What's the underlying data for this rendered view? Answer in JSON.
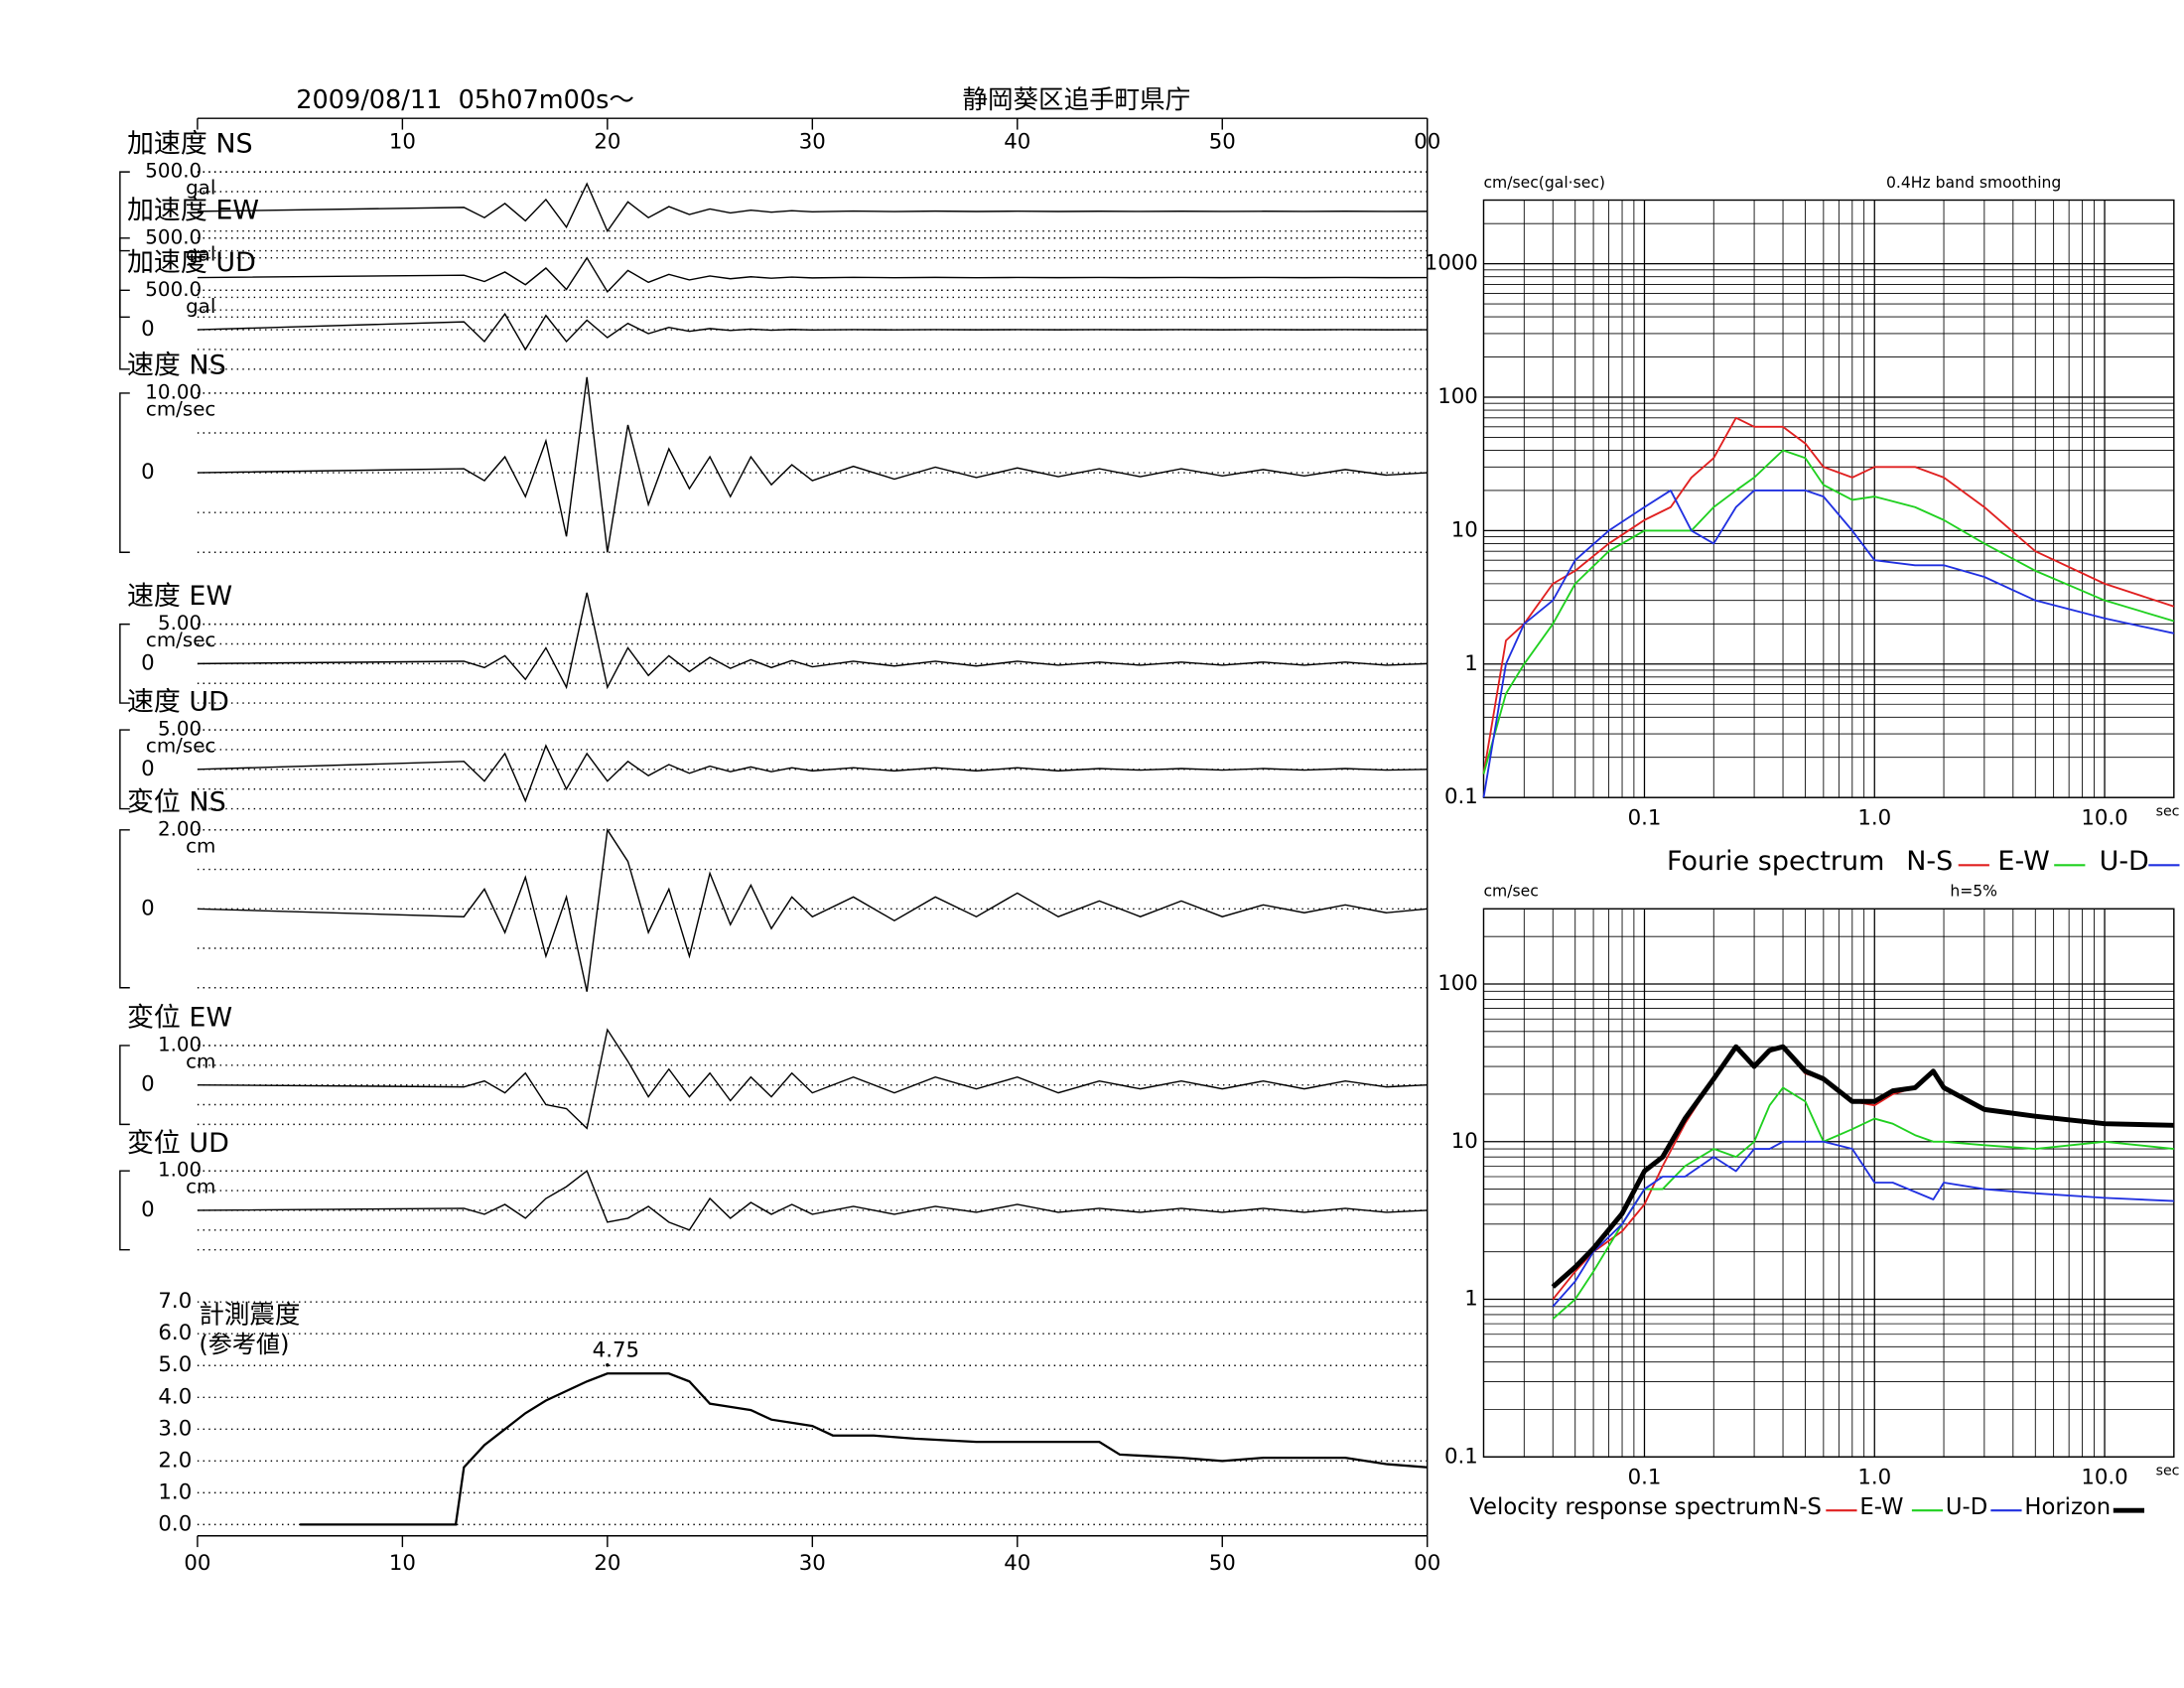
{
  "header": {
    "datetime": "2009/08/11  05h07m00s〜",
    "station": "静岡葵区追手町県庁"
  },
  "time_axis": {
    "xlim": [
      0,
      60
    ],
    "xticks": [
      {
        "value": 0,
        "label": "00"
      },
      10,
      20,
      30,
      40,
      50,
      {
        "value": 60,
        "label": "00"
      }
    ]
  },
  "chart_data": [
    {
      "type": "line",
      "title": "加速度 NS",
      "y_unit": "gal",
      "ylim": [
        -500,
        500
      ],
      "yticks": [
        {
          "value": 500,
          "label": "500.0"
        }
      ],
      "x": [
        0,
        13,
        14,
        15,
        16,
        17,
        18,
        19,
        20,
        21,
        22,
        23,
        24,
        25,
        26,
        27,
        28,
        29,
        30,
        32,
        34,
        36,
        38,
        40,
        42,
        44,
        46,
        48,
        50,
        52,
        54,
        56,
        58,
        60
      ],
      "values": [
        0,
        50,
        -80,
        100,
        -120,
        150,
        -200,
        350,
        -250,
        120,
        -80,
        60,
        -40,
        30,
        -20,
        15,
        -10,
        8,
        -6,
        4,
        -3,
        3,
        -2,
        2,
        -2,
        1,
        -1,
        1,
        -1,
        1,
        -1,
        1,
        -1,
        0
      ]
    },
    {
      "type": "line",
      "title": "加速度 EW",
      "y_unit": "gal",
      "ylim": [
        -500,
        500
      ],
      "yticks": [
        {
          "value": 500,
          "label": "500.0"
        }
      ],
      "x": [
        0,
        13,
        14,
        15,
        16,
        17,
        18,
        19,
        20,
        21,
        22,
        23,
        24,
        25,
        26,
        27,
        28,
        29,
        30,
        32,
        34,
        36,
        38,
        40,
        42,
        44,
        46,
        48,
        50,
        52,
        54,
        56,
        58,
        60
      ],
      "values": [
        0,
        30,
        -50,
        70,
        -90,
        120,
        -150,
        250,
        -180,
        90,
        -60,
        40,
        -30,
        20,
        -15,
        10,
        -8,
        6,
        -4,
        3,
        -2,
        2,
        -2,
        1,
        -1,
        1,
        -1,
        1,
        -1,
        1,
        -1,
        1,
        -1,
        0
      ]
    },
    {
      "type": "line",
      "title": "加速度 UD",
      "y_unit": "gal",
      "ylim": [
        -500,
        500
      ],
      "yticks": [
        {
          "value": 500,
          "label": "500.0"
        },
        0
      ],
      "x": [
        0,
        13,
        14,
        15,
        16,
        17,
        18,
        19,
        20,
        21,
        22,
        23,
        24,
        25,
        26,
        27,
        28,
        29,
        30,
        32,
        34,
        36,
        38,
        40,
        42,
        44,
        46,
        48,
        50,
        52,
        54,
        56,
        58,
        60
      ],
      "values": [
        0,
        100,
        -150,
        200,
        -250,
        180,
        -150,
        120,
        -100,
        80,
        -50,
        30,
        -20,
        15,
        -10,
        8,
        -6,
        4,
        -3,
        2,
        -2,
        1,
        -1,
        1,
        -1,
        1,
        -1,
        1,
        -1,
        1,
        -1,
        1,
        -1,
        0
      ]
    },
    {
      "type": "line",
      "title": "速度 NS",
      "y_unit": "cm/sec",
      "ylim": [
        -10,
        10
      ],
      "yticks": [
        {
          "value": 10,
          "label": "10.00"
        },
        0
      ],
      "x": [
        0,
        13,
        14,
        15,
        16,
        17,
        18,
        19,
        20,
        21,
        22,
        23,
        24,
        25,
        26,
        27,
        28,
        29,
        30,
        32,
        34,
        36,
        38,
        40,
        42,
        44,
        46,
        48,
        50,
        52,
        54,
        56,
        58,
        60
      ],
      "values": [
        0,
        0.5,
        -1,
        2,
        -3,
        4,
        -8,
        12,
        -10,
        6,
        -4,
        3,
        -2,
        2,
        -3,
        2,
        -1.5,
        1,
        -1,
        0.8,
        -0.8,
        0.7,
        -0.6,
        0.6,
        -0.5,
        0.5,
        -0.5,
        0.5,
        -0.4,
        0.4,
        -0.4,
        0.4,
        -0.3,
        0
      ]
    },
    {
      "type": "line",
      "title": "速度 EW",
      "y_unit": "cm/sec",
      "ylim": [
        -5,
        5
      ],
      "yticks": [
        {
          "value": 5,
          "label": "5.00"
        },
        0
      ],
      "x": [
        0,
        13,
        14,
        15,
        16,
        17,
        18,
        19,
        20,
        21,
        22,
        23,
        24,
        25,
        26,
        27,
        28,
        29,
        30,
        32,
        34,
        36,
        38,
        40,
        42,
        44,
        46,
        48,
        50,
        52,
        54,
        56,
        58,
        60
      ],
      "values": [
        0,
        0.3,
        -0.5,
        1,
        -2,
        2,
        -3,
        9,
        -3,
        2,
        -1.5,
        1,
        -1,
        0.8,
        -0.6,
        0.5,
        -0.5,
        0.4,
        -0.4,
        0.3,
        -0.3,
        0.3,
        -0.3,
        0.3,
        -0.2,
        0.2,
        -0.2,
        0.2,
        -0.2,
        0.2,
        -0.2,
        0.2,
        -0.2,
        0
      ]
    },
    {
      "type": "line",
      "title": "速度 UD",
      "y_unit": "cm/sec",
      "ylim": [
        -5,
        5
      ],
      "yticks": [
        {
          "value": 5,
          "label": "5.00"
        },
        0
      ],
      "x": [
        0,
        13,
        14,
        15,
        16,
        17,
        18,
        19,
        20,
        21,
        22,
        23,
        24,
        25,
        26,
        27,
        28,
        29,
        30,
        32,
        34,
        36,
        38,
        40,
        42,
        44,
        46,
        48,
        50,
        52,
        54,
        56,
        58,
        60
      ],
      "values": [
        0,
        1,
        -1.5,
        2,
        -4,
        3,
        -2.5,
        2,
        -1.5,
        1,
        -0.8,
        0.6,
        -0.5,
        0.4,
        -0.3,
        0.3,
        -0.3,
        0.2,
        -0.2,
        0.2,
        -0.2,
        0.2,
        -0.2,
        0.2,
        -0.2,
        0.1,
        -0.1,
        0.1,
        -0.1,
        0.1,
        -0.1,
        0.1,
        -0.1,
        0
      ]
    },
    {
      "type": "line",
      "title": "変位 NS",
      "y_unit": "cm",
      "ylim": [
        -2,
        2
      ],
      "yticks": [
        {
          "value": 2,
          "label": "2.00"
        },
        0
      ],
      "x": [
        0,
        13,
        14,
        15,
        16,
        17,
        18,
        19,
        20,
        21,
        22,
        23,
        24,
        25,
        26,
        27,
        28,
        29,
        30,
        32,
        34,
        36,
        38,
        40,
        42,
        44,
        46,
        48,
        50,
        52,
        54,
        56,
        58,
        60
      ],
      "values": [
        0,
        -0.2,
        0.5,
        -0.6,
        0.8,
        -1.2,
        0.3,
        -2.1,
        2.0,
        1.2,
        -0.6,
        0.5,
        -1.2,
        0.9,
        -0.4,
        0.6,
        -0.5,
        0.3,
        -0.2,
        0.3,
        -0.3,
        0.3,
        -0.2,
        0.4,
        -0.2,
        0.2,
        -0.2,
        0.2,
        -0.2,
        0.1,
        -0.1,
        0.1,
        -0.1,
        0
      ]
    },
    {
      "type": "line",
      "title": "変位 EW",
      "y_unit": "cm",
      "ylim": [
        -1,
        1
      ],
      "yticks": [
        {
          "value": 1,
          "label": "1.00"
        },
        0
      ],
      "x": [
        0,
        13,
        14,
        15,
        16,
        17,
        18,
        19,
        20,
        21,
        22,
        23,
        24,
        25,
        26,
        27,
        28,
        29,
        30,
        32,
        34,
        36,
        38,
        40,
        42,
        44,
        46,
        48,
        50,
        52,
        54,
        56,
        58,
        60
      ],
      "values": [
        0,
        -0.05,
        0.1,
        -0.2,
        0.3,
        -0.5,
        -0.6,
        -1.1,
        1.4,
        0.6,
        -0.3,
        0.4,
        -0.3,
        0.3,
        -0.4,
        0.2,
        -0.3,
        0.3,
        -0.2,
        0.2,
        -0.2,
        0.2,
        -0.1,
        0.2,
        -0.2,
        0.1,
        -0.1,
        0.1,
        -0.1,
        0.1,
        -0.1,
        0.1,
        -0.05,
        0
      ]
    },
    {
      "type": "line",
      "title": "変位 UD",
      "y_unit": "cm",
      "ylim": [
        -1,
        1
      ],
      "yticks": [
        {
          "value": 1,
          "label": "1.00"
        },
        0
      ],
      "x": [
        0,
        13,
        14,
        15,
        16,
        17,
        18,
        19,
        20,
        21,
        22,
        23,
        24,
        25,
        26,
        27,
        28,
        29,
        30,
        32,
        34,
        36,
        38,
        40,
        42,
        44,
        46,
        48,
        50,
        52,
        54,
        56,
        58,
        60
      ],
      "values": [
        0,
        0.05,
        -0.1,
        0.15,
        -0.2,
        0.3,
        0.6,
        1.0,
        -0.3,
        -0.2,
        0.1,
        -0.3,
        -0.5,
        0.3,
        -0.2,
        0.2,
        -0.1,
        0.15,
        -0.1,
        0.1,
        -0.1,
        0.1,
        -0.05,
        0.15,
        -0.05,
        0.05,
        -0.05,
        0.05,
        -0.05,
        0.05,
        -0.05,
        0.05,
        -0.05,
        0
      ]
    },
    {
      "type": "line",
      "title": "計測震度",
      "subtitle": "(参考値)",
      "ylim": [
        0,
        7
      ],
      "peak": 4.75,
      "yticks": [
        {
          "value": 0,
          "label": "0.0"
        },
        {
          "value": 1,
          "label": "1.0"
        },
        {
          "value": 2,
          "label": "2.0"
        },
        {
          "value": 3,
          "label": "3.0"
        },
        {
          "value": 4,
          "label": "4.0"
        },
        {
          "value": 5,
          "label": "5.0"
        },
        {
          "value": 6,
          "label": "6.0"
        },
        {
          "value": 7,
          "label": "7.0"
        }
      ],
      "x": [
        5,
        12.6,
        13,
        14,
        15,
        16,
        17,
        18,
        19,
        20,
        21,
        22,
        23,
        24,
        25,
        26,
        27,
        28,
        29,
        30,
        31,
        33,
        35,
        38,
        40,
        44,
        45,
        48,
        50,
        52,
        56,
        58,
        60
      ],
      "values": [
        0,
        0,
        1.8,
        2.5,
        3.0,
        3.5,
        3.9,
        4.2,
        4.5,
        4.75,
        4.75,
        4.75,
        4.75,
        4.5,
        3.8,
        3.7,
        3.6,
        3.3,
        3.2,
        3.1,
        2.8,
        2.8,
        2.7,
        2.6,
        2.6,
        2.6,
        2.2,
        2.1,
        2.0,
        2.1,
        2.1,
        1.9,
        1.8
      ]
    },
    {
      "type": "line",
      "log_scale": true,
      "legend_title": "Fourie spectrum",
      "y_unit": "cm/sec(gal·sec)",
      "note": "0.4Hz band smoothing",
      "x_unit": "sec",
      "xlim": [
        0.02,
        20
      ],
      "ylim": [
        0.1,
        3000
      ],
      "xticks": [
        0.1,
        {
          "value": 1,
          "label": "1.0"
        },
        {
          "value": 10,
          "label": "10.0"
        }
      ],
      "yticks": [
        0.1,
        1,
        10,
        100,
        1000
      ],
      "x": [
        0.02,
        0.025,
        0.03,
        0.04,
        0.05,
        0.07,
        0.1,
        0.13,
        0.16,
        0.2,
        0.25,
        0.3,
        0.4,
        0.5,
        0.6,
        0.8,
        1.0,
        1.5,
        2,
        3,
        5,
        10,
        20
      ],
      "series": [
        {
          "name": "N-S",
          "color": "#e02020",
          "values": [
            0.15,
            1.5,
            2,
            4,
            5,
            8,
            12,
            15,
            25,
            35,
            70,
            60,
            60,
            45,
            30,
            25,
            30,
            30,
            25,
            15,
            7,
            4,
            2.7
          ]
        },
        {
          "name": "E-W",
          "color": "#20d020",
          "values": [
            0.15,
            0.6,
            1,
            2,
            4,
            7,
            10,
            10,
            10,
            15,
            20,
            25,
            40,
            35,
            22,
            17,
            18,
            15,
            12,
            8,
            5,
            3,
            2.1
          ]
        },
        {
          "name": "U-D",
          "color": "#2030e0",
          "values": [
            0.1,
            1,
            2,
            3,
            6,
            10,
            15,
            20,
            10,
            8,
            15,
            20,
            20,
            20,
            18,
            10,
            6,
            5.5,
            5.5,
            4.5,
            3,
            2.2,
            1.7
          ]
        }
      ]
    },
    {
      "type": "line",
      "log_scale": true,
      "legend_title": "Velocity response spectrum",
      "y_unit": "cm/sec",
      "note": "h=5%",
      "x_unit": "sec",
      "xlim": [
        0.02,
        20
      ],
      "ylim": [
        0.1,
        300
      ],
      "xticks": [
        0.1,
        {
          "value": 1,
          "label": "1.0"
        },
        {
          "value": 10,
          "label": "10.0"
        }
      ],
      "yticks": [
        0.1,
        1,
        10,
        100
      ],
      "x": [
        0.04,
        0.05,
        0.06,
        0.08,
        0.1,
        0.12,
        0.15,
        0.2,
        0.25,
        0.3,
        0.35,
        0.4,
        0.5,
        0.6,
        0.8,
        1.0,
        1.2,
        1.5,
        1.8,
        2,
        3,
        5,
        10,
        20
      ],
      "series": [
        {
          "name": "N-S",
          "color": "#e02020",
          "values": [
            1.0,
            1.5,
            2,
            2.7,
            4,
            7,
            13,
            25,
            40,
            30,
            37,
            40,
            27,
            25,
            18,
            17,
            20,
            22,
            28,
            22,
            16,
            14.5,
            13,
            12.7
          ]
        },
        {
          "name": "E-W",
          "color": "#20d020",
          "values": [
            0.75,
            1,
            1.5,
            3,
            5,
            5,
            7,
            9,
            8,
            10,
            17,
            22,
            18,
            10,
            12,
            14,
            13,
            11,
            10,
            10,
            9.5,
            9,
            10,
            9
          ]
        },
        {
          "name": "U-D",
          "color": "#2030e0",
          "values": [
            0.9,
            1.3,
            2,
            3,
            5,
            6,
            6,
            8,
            6.5,
            9,
            9,
            10,
            10,
            10,
            9,
            5.5,
            5.5,
            4.8,
            4.3,
            5.5,
            5,
            4.7,
            4.4,
            4.2
          ]
        },
        {
          "name": "Horizon",
          "color": "#000000",
          "line_width": 3.5,
          "values": [
            1.2,
            1.6,
            2.1,
            3.5,
            6.5,
            8,
            14,
            25,
            40,
            30,
            38,
            40,
            28,
            25,
            18,
            18,
            21,
            22,
            28,
            22,
            16,
            14.5,
            13,
            12.7
          ]
        }
      ]
    }
  ]
}
